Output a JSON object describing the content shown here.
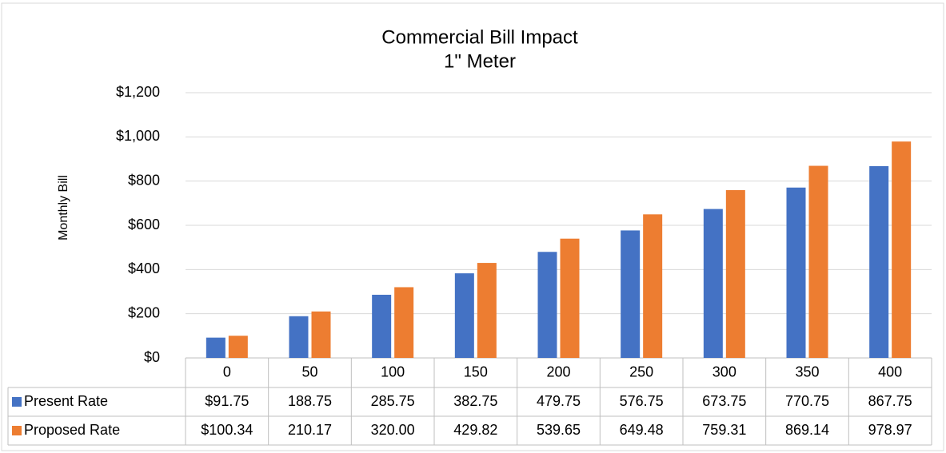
{
  "chart_data": {
    "type": "bar",
    "title": "Commercial Bill Impact",
    "subtitle": "1\" Meter",
    "y_label": "Monthly Bill",
    "categories": [
      "0",
      "50",
      "100",
      "150",
      "200",
      "250",
      "300",
      "350",
      "400"
    ],
    "series": [
      {
        "name": "Present Rate",
        "color": "#4472c4",
        "values": [
          91.75,
          188.75,
          285.75,
          382.75,
          479.75,
          576.75,
          673.75,
          770.75,
          867.75
        ],
        "value_labels": [
          "$91.75",
          "188.75",
          "285.75",
          "382.75",
          "479.75",
          "576.75",
          "673.75",
          "770.75",
          "867.75"
        ]
      },
      {
        "name": "Proposed Rate",
        "color": "#ed7d31",
        "values": [
          100.34,
          210.17,
          320.0,
          429.82,
          539.65,
          649.48,
          759.31,
          869.14,
          978.97
        ],
        "value_labels": [
          "$100.34",
          "210.17",
          "320.00",
          "429.82",
          "539.65",
          "649.48",
          "759.31",
          "869.14",
          "978.97"
        ]
      }
    ],
    "ylim": [
      0,
      1200
    ],
    "yticks": [
      {
        "value": 0,
        "label": "$0"
      },
      {
        "value": 200,
        "label": "$200"
      },
      {
        "value": 400,
        "label": "$400"
      },
      {
        "value": 600,
        "label": "$600"
      },
      {
        "value": 800,
        "label": "$800"
      },
      {
        "value": 1000,
        "label": "$1,000"
      },
      {
        "value": 1200,
        "label": "$1,200"
      }
    ],
    "grid": true
  }
}
